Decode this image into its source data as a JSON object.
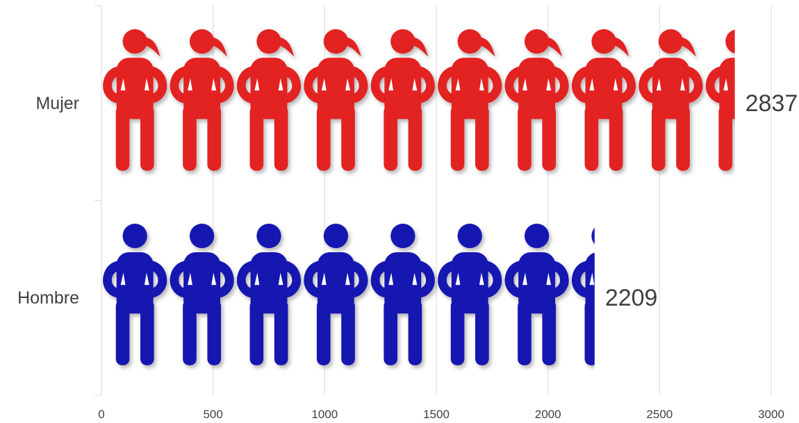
{
  "chart_data": {
    "type": "bar",
    "orientation": "horizontal",
    "categories": [
      "Mujer",
      "Hombre"
    ],
    "values": [
      2837,
      2209
    ],
    "data_labels": [
      "2837",
      "2209"
    ],
    "xlim": [
      0,
      3000
    ],
    "x_ticks": [
      0,
      500,
      1000,
      1500,
      2000,
      2500,
      3000
    ],
    "x_tick_labels": [
      "0",
      "500",
      "1000",
      "1500",
      "2000",
      "2500",
      "3000"
    ],
    "units_per_icon": 300,
    "grid": true,
    "legend": "none",
    "title": "",
    "xlabel": "",
    "ylabel": "",
    "series": [
      {
        "category": "Mujer",
        "icon": "woman-icon",
        "color": "#e32020"
      },
      {
        "category": "Hombre",
        "icon": "man-icon",
        "color": "#1313b0"
      }
    ]
  }
}
